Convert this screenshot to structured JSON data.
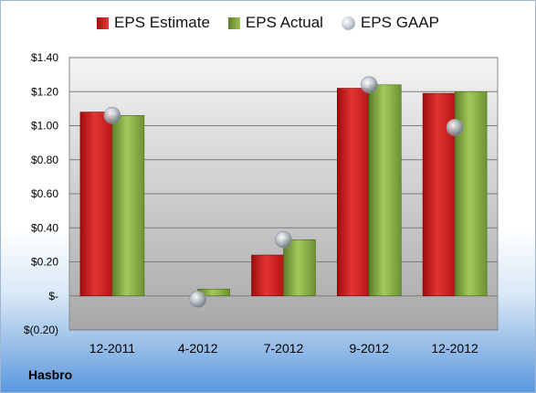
{
  "company": "Hasbro",
  "colors": {
    "estimate": "#c81e1e",
    "actual": "#7ea23c",
    "gaap": "#b8c0c8",
    "plot_bg_top": "#f4f4f4",
    "plot_bg_bottom": "#a8a8a8"
  },
  "chart_data": {
    "type": "bar",
    "categories": [
      "12-2011",
      "4-2012",
      "7-2012",
      "9-2012",
      "12-2012"
    ],
    "series": [
      {
        "name": "EPS Estimate",
        "kind": "bar",
        "values": [
          1.08,
          null,
          0.24,
          1.22,
          1.19
        ]
      },
      {
        "name": "EPS Actual",
        "kind": "bar",
        "values": [
          1.06,
          0.04,
          0.33,
          1.24,
          1.2
        ]
      },
      {
        "name": "EPS GAAP",
        "kind": "marker",
        "values": [
          1.06,
          -0.02,
          0.33,
          1.24,
          0.99
        ]
      }
    ],
    "ylim": [
      -0.2,
      1.4
    ],
    "yticks": [
      -0.2,
      0,
      0.2,
      0.4,
      0.6,
      0.8,
      1.0,
      1.2,
      1.4
    ],
    "ytick_labels": [
      "$(0.20)",
      "$-",
      "$0.20",
      "$0.40",
      "$0.60",
      "$0.80",
      "$1.00",
      "$1.20",
      "$1.40"
    ],
    "grid": true,
    "legend_position": "top"
  }
}
